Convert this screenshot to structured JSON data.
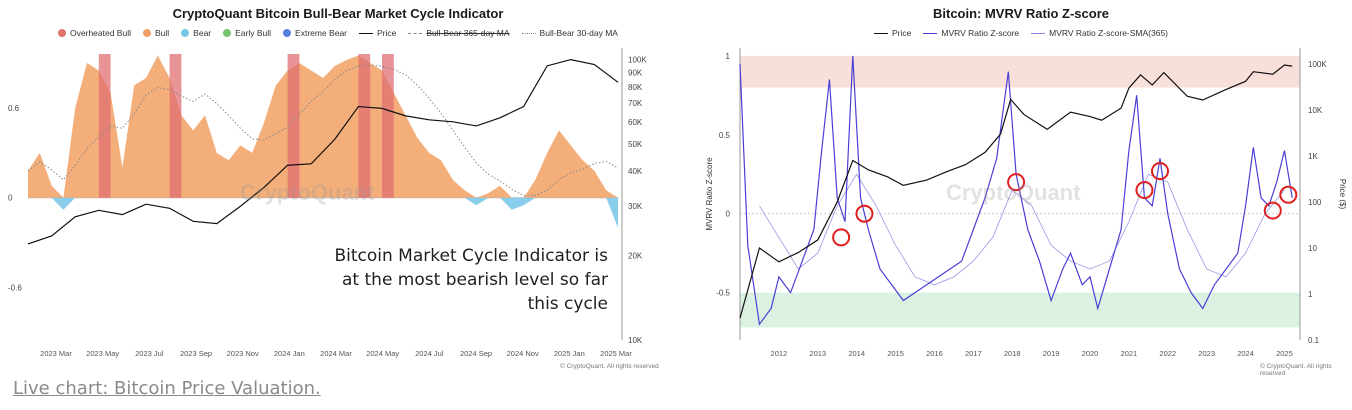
{
  "caption_link": "Live chart: Bitcoin Price Valuation.",
  "chart_data": [
    {
      "type": "area",
      "title": "CryptoQuant Bitcoin Bull-Bear Market Cycle Indicator",
      "legend": {
        "placement": "top",
        "items": [
          {
            "label": "Overheated Bull",
            "color": "#e0726e",
            "kind": "dot"
          },
          {
            "label": "Bull",
            "color": "#f0a066",
            "kind": "dot"
          },
          {
            "label": "Bear",
            "color": "#76c6e6",
            "kind": "dot"
          },
          {
            "label": "Early Bull",
            "color": "#78c36e",
            "kind": "dot"
          },
          {
            "label": "Extreme Bear",
            "color": "#5b7de0",
            "kind": "dot"
          },
          {
            "label": "Price",
            "color": "#111111",
            "kind": "line"
          },
          {
            "label": "Bull-Bear 365-day MA",
            "color": "#888888",
            "kind": "dash"
          },
          {
            "label": "Bull-Bear 30-day MA",
            "color": "#888888",
            "kind": "dotted"
          }
        ]
      },
      "x_ticks": [
        "2023 Mar",
        "2023 May",
        "2023 Jul",
        "2023 Sep",
        "2023 Nov",
        "2024 Jan",
        "2024 Mar",
        "2024 May",
        "2024 Jul",
        "2024 Sep",
        "2024 Nov",
        "2025 Jan",
        "2025 Mar"
      ],
      "y_left_ticks": [
        "0.6",
        "0",
        "-0.6"
      ],
      "y_left_range": [
        -0.95,
        1.0
      ],
      "y_right_ticks": [
        "100K",
        "90K",
        "80K",
        "70K",
        "60K",
        "50K",
        "40K",
        "30K",
        "20K",
        "10K"
      ],
      "y_right_scale": "log",
      "y_right_range": [
        10000,
        110000
      ],
      "indicator": {
        "x": [
          0,
          0.02,
          0.04,
          0.06,
          0.08,
          0.1,
          0.12,
          0.14,
          0.16,
          0.18,
          0.2,
          0.22,
          0.24,
          0.26,
          0.28,
          0.3,
          0.32,
          0.34,
          0.36,
          0.38,
          0.4,
          0.42,
          0.44,
          0.46,
          0.48,
          0.5,
          0.52,
          0.54,
          0.56,
          0.58,
          0.6,
          0.62,
          0.64,
          0.66,
          0.68,
          0.7,
          0.72,
          0.74,
          0.76,
          0.78,
          0.8,
          0.82,
          0.84,
          0.86,
          0.88,
          0.9,
          0.92,
          0.94,
          0.96,
          0.98,
          1.0
        ],
        "values": [
          0.18,
          0.3,
          0.08,
          -0.08,
          0.6,
          0.9,
          0.85,
          0.7,
          0.2,
          0.75,
          0.8,
          0.95,
          0.8,
          0.55,
          0.45,
          0.55,
          0.3,
          0.25,
          0.35,
          0.3,
          0.5,
          0.75,
          0.85,
          0.9,
          0.85,
          0.8,
          0.88,
          0.92,
          0.95,
          0.9,
          0.85,
          0.7,
          0.55,
          0.4,
          0.3,
          0.25,
          0.12,
          0.05,
          -0.05,
          0.03,
          0.08,
          -0.08,
          -0.05,
          0.12,
          0.3,
          0.45,
          0.35,
          0.25,
          0.18,
          0.05,
          -0.2
        ]
      },
      "overheated_bands": [
        [
          0.12,
          0.14
        ],
        [
          0.24,
          0.26
        ],
        [
          0.44,
          0.46
        ],
        [
          0.56,
          0.58
        ],
        [
          0.6,
          0.62
        ]
      ],
      "price": {
        "x": [
          0,
          0.04,
          0.08,
          0.12,
          0.16,
          0.2,
          0.24,
          0.28,
          0.32,
          0.36,
          0.4,
          0.44,
          0.48,
          0.52,
          0.56,
          0.6,
          0.64,
          0.68,
          0.72,
          0.76,
          0.8,
          0.84,
          0.88,
          0.92,
          0.96,
          1.0
        ],
        "values": [
          22000,
          23500,
          27500,
          29000,
          28000,
          30500,
          29500,
          26500,
          26000,
          30000,
          35000,
          42000,
          42500,
          52000,
          68000,
          67000,
          63000,
          61000,
          60000,
          58000,
          62000,
          68000,
          95000,
          100000,
          96000,
          83000
        ]
      },
      "annotation": "Bitcoin Market Cycle Indicator is at the most bearish level so far this cycle"
    },
    {
      "type": "line",
      "title": "Bitcoin: MVRV Ratio Z-score",
      "legend": {
        "placement": "top",
        "items": [
          {
            "label": "Price",
            "color": "#111111",
            "kind": "line"
          },
          {
            "label": "MVRV Ratio Z-score",
            "color": "#4a3fd6",
            "kind": "line"
          },
          {
            "label": "MVRV Ratio Z-score-SMA(365)",
            "color": "#8c86e6",
            "kind": "thin"
          }
        ]
      },
      "ylabel": "MVRV Ratio Z-score",
      "y2label": "Price ($)",
      "x_ticks": [
        "2012",
        "2013",
        "2014",
        "2015",
        "2016",
        "2017",
        "2018",
        "2019",
        "2020",
        "2021",
        "2022",
        "2023",
        "2024",
        "2025"
      ],
      "y_left_ticks": [
        "1",
        "0.5",
        "0",
        "-0.5"
      ],
      "y_left_range": [
        -0.8,
        1.05
      ],
      "y_right_ticks": [
        "100K",
        "10K",
        "1K",
        "100",
        "10",
        "1",
        "0.1"
      ],
      "y_right_scale": "log",
      "red_zone": [
        0.8,
        1.0
      ],
      "green_zone": [
        -0.72,
        -0.5
      ],
      "zscore": {
        "x": [
          2011.0,
          2011.2,
          2011.5,
          2011.8,
          2012.0,
          2012.3,
          2012.6,
          2012.9,
          2013.1,
          2013.3,
          2013.5,
          2013.7,
          2013.9,
          2014.1,
          2014.3,
          2014.6,
          2014.9,
          2015.2,
          2015.5,
          2015.8,
          2016.1,
          2016.4,
          2016.7,
          2017.0,
          2017.3,
          2017.6,
          2017.9,
          2018.1,
          2018.4,
          2018.7,
          2019.0,
          2019.3,
          2019.5,
          2019.8,
          2020.0,
          2020.2,
          2020.5,
          2020.8,
          2021.0,
          2021.2,
          2021.4,
          2021.6,
          2021.8,
          2022.0,
          2022.3,
          2022.6,
          2022.9,
          2023.2,
          2023.5,
          2023.8,
          2024.0,
          2024.2,
          2024.4,
          2024.6,
          2024.8,
          2025.0,
          2025.2
        ],
        "values": [
          0.95,
          -0.2,
          -0.7,
          -0.6,
          -0.4,
          -0.5,
          -0.3,
          -0.1,
          0.4,
          0.85,
          0.1,
          -0.05,
          1.0,
          0.1,
          -0.1,
          -0.35,
          -0.45,
          -0.55,
          -0.5,
          -0.45,
          -0.4,
          -0.35,
          -0.3,
          -0.1,
          0.1,
          0.35,
          0.9,
          0.25,
          -0.1,
          -0.3,
          -0.55,
          -0.35,
          -0.25,
          -0.45,
          -0.4,
          -0.6,
          -0.35,
          -0.1,
          0.4,
          0.75,
          0.1,
          0.05,
          0.35,
          0.0,
          -0.35,
          -0.5,
          -0.6,
          -0.45,
          -0.35,
          -0.25,
          0.05,
          0.42,
          0.1,
          0.05,
          0.2,
          0.4,
          0.1
        ]
      },
      "zscore_sma": {
        "x": [
          2011.5,
          2012.0,
          2012.5,
          2013.0,
          2013.5,
          2014.0,
          2014.5,
          2015.0,
          2015.5,
          2016.0,
          2016.5,
          2017.0,
          2017.5,
          2018.0,
          2018.5,
          2019.0,
          2019.5,
          2020.0,
          2020.5,
          2021.0,
          2021.5,
          2022.0,
          2022.5,
          2023.0,
          2023.5,
          2024.0,
          2024.5,
          2025.0
        ],
        "values": [
          0.05,
          -0.15,
          -0.35,
          -0.25,
          0.05,
          0.25,
          0.05,
          -0.2,
          -0.4,
          -0.45,
          -0.4,
          -0.3,
          -0.15,
          0.15,
          0.05,
          -0.2,
          -0.3,
          -0.35,
          -0.3,
          -0.05,
          0.25,
          0.2,
          -0.1,
          -0.35,
          -0.4,
          -0.25,
          0.0,
          0.15
        ]
      },
      "price": {
        "x": [
          2011.0,
          2011.5,
          2012.0,
          2012.5,
          2013.0,
          2013.5,
          2013.9,
          2014.3,
          2014.8,
          2015.2,
          2015.8,
          2016.3,
          2016.8,
          2017.3,
          2017.7,
          2017.96,
          2018.3,
          2018.9,
          2019.5,
          2020.0,
          2020.3,
          2020.8,
          2021.0,
          2021.3,
          2021.6,
          2021.9,
          2022.5,
          2022.9,
          2023.5,
          2024.0,
          2024.2,
          2024.7,
          2025.0,
          2025.2
        ],
        "values": [
          0.3,
          10,
          5,
          8,
          15,
          100,
          800,
          500,
          350,
          230,
          300,
          450,
          650,
          1200,
          3000,
          17000,
          8000,
          3800,
          9000,
          7200,
          6000,
          11000,
          30000,
          58000,
          35000,
          65000,
          20000,
          16500,
          28000,
          42000,
          68000,
          60000,
          95000,
          90000
        ]
      },
      "red_circles": [
        {
          "x": 2013.6,
          "z": -0.15
        },
        {
          "x": 2014.2,
          "z": 0.0
        },
        {
          "x": 2018.1,
          "z": 0.2
        },
        {
          "x": 2021.4,
          "z": 0.15
        },
        {
          "x": 2021.8,
          "z": 0.27
        },
        {
          "x": 2024.7,
          "z": 0.02
        },
        {
          "x": 2025.1,
          "z": 0.12
        }
      ]
    }
  ]
}
